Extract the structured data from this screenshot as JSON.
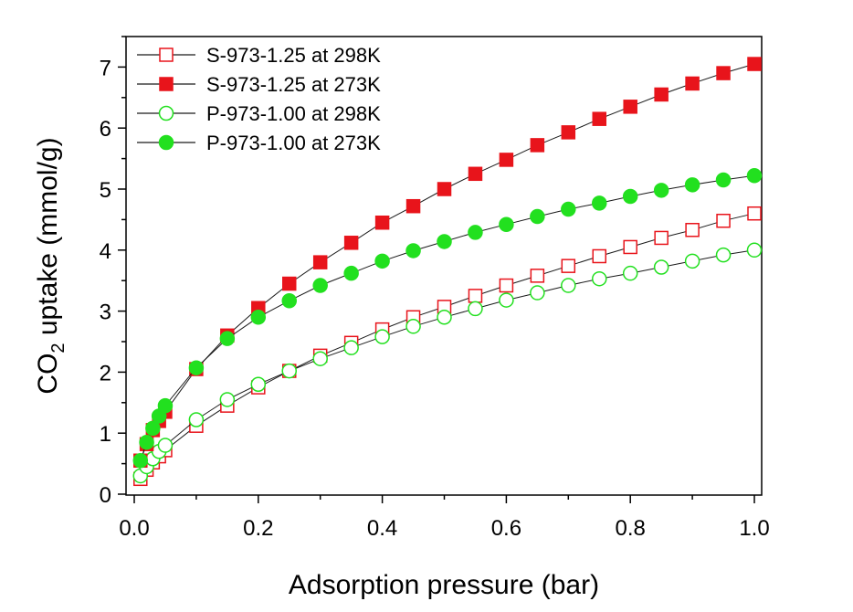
{
  "chart_data": {
    "type": "scatter",
    "title": "",
    "xlabel": "Adsorption pressure (bar)",
    "ylabel": {
      "prefix": "CO",
      "subscript": "2",
      "suffix": " uptake (mmol/g)"
    },
    "xlim": [
      0.0,
      1.0
    ],
    "ylim": [
      0,
      7.5
    ],
    "x_ticks": [
      0.0,
      0.2,
      0.4,
      0.6,
      0.8,
      1.0
    ],
    "x_tick_labels": [
      "0.0",
      "0.2",
      "0.4",
      "0.6",
      "0.8",
      "1.0"
    ],
    "y_ticks": [
      0,
      1,
      2,
      3,
      4,
      5,
      6,
      7
    ],
    "y_tick_labels": [
      "0",
      "1",
      "2",
      "3",
      "4",
      "5",
      "6",
      "7"
    ],
    "grid": false,
    "legend_position": "top-left",
    "series": [
      {
        "name": "S-973-1.25 at 298K",
        "marker": "square",
        "filled": false,
        "color": "#e8141b",
        "x": [
          0.01,
          0.02,
          0.03,
          0.04,
          0.05,
          0.1,
          0.15,
          0.2,
          0.25,
          0.3,
          0.35,
          0.4,
          0.45,
          0.5,
          0.55,
          0.6,
          0.65,
          0.7,
          0.75,
          0.8,
          0.85,
          0.9,
          0.95,
          1.0
        ],
        "y": [
          0.25,
          0.4,
          0.52,
          0.62,
          0.72,
          1.12,
          1.45,
          1.75,
          2.02,
          2.27,
          2.48,
          2.7,
          2.9,
          3.07,
          3.25,
          3.42,
          3.58,
          3.74,
          3.9,
          4.05,
          4.2,
          4.33,
          4.48,
          4.6
        ]
      },
      {
        "name": "S-973-1.25 at 273K",
        "marker": "square",
        "filled": true,
        "color": "#e8141b",
        "x": [
          0.01,
          0.02,
          0.03,
          0.04,
          0.05,
          0.1,
          0.15,
          0.2,
          0.25,
          0.3,
          0.35,
          0.4,
          0.45,
          0.5,
          0.55,
          0.6,
          0.65,
          0.7,
          0.75,
          0.8,
          0.85,
          0.9,
          0.95,
          1.0
        ],
        "y": [
          0.55,
          0.82,
          1.05,
          1.2,
          1.35,
          2.05,
          2.6,
          3.05,
          3.45,
          3.8,
          4.12,
          4.45,
          4.72,
          5.0,
          5.25,
          5.48,
          5.72,
          5.93,
          6.15,
          6.35,
          6.55,
          6.73,
          6.9,
          7.05
        ]
      },
      {
        "name": "P-973-1.00 at 298K",
        "marker": "circle",
        "filled": false,
        "color": "#22e01f",
        "x": [
          0.01,
          0.02,
          0.03,
          0.04,
          0.05,
          0.1,
          0.15,
          0.2,
          0.25,
          0.3,
          0.35,
          0.4,
          0.45,
          0.5,
          0.55,
          0.6,
          0.65,
          0.7,
          0.75,
          0.8,
          0.85,
          0.9,
          0.95,
          1.0
        ],
        "y": [
          0.3,
          0.45,
          0.58,
          0.7,
          0.8,
          1.22,
          1.55,
          1.8,
          2.02,
          2.22,
          2.4,
          2.58,
          2.75,
          2.9,
          3.04,
          3.18,
          3.3,
          3.42,
          3.53,
          3.62,
          3.72,
          3.82,
          3.92,
          4.0
        ]
      },
      {
        "name": "P-973-1.00 at 273K",
        "marker": "circle",
        "filled": true,
        "color": "#22e01f",
        "x": [
          0.01,
          0.02,
          0.03,
          0.04,
          0.05,
          0.1,
          0.15,
          0.2,
          0.25,
          0.3,
          0.35,
          0.4,
          0.45,
          0.5,
          0.55,
          0.6,
          0.65,
          0.7,
          0.75,
          0.8,
          0.85,
          0.9,
          0.95,
          1.0
        ],
        "y": [
          0.55,
          0.85,
          1.08,
          1.28,
          1.45,
          2.07,
          2.55,
          2.9,
          3.17,
          3.42,
          3.62,
          3.82,
          3.99,
          4.14,
          4.29,
          4.42,
          4.55,
          4.67,
          4.77,
          4.88,
          4.98,
          5.07,
          5.15,
          5.22
        ]
      }
    ]
  }
}
